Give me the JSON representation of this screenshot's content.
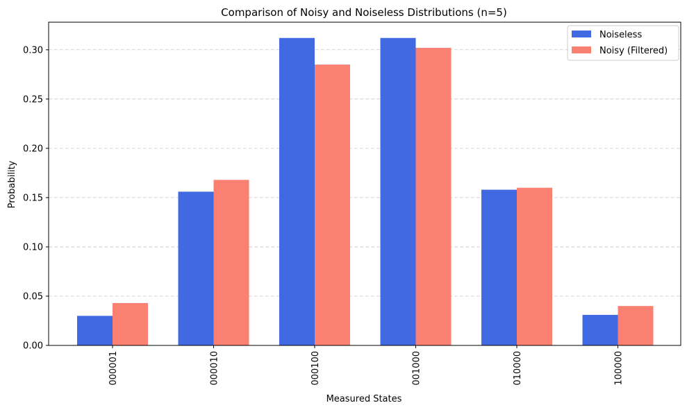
{
  "chart_data": {
    "type": "bar",
    "title": "Comparison of Noisy and Noiseless Distributions (n=5)",
    "xlabel": "Measured States",
    "ylabel": "Probability",
    "categories": [
      "000001",
      "000010",
      "000100",
      "001000",
      "010000",
      "100000"
    ],
    "series": [
      {
        "name": "Noiseless",
        "color": "#4169e1",
        "values": [
          0.03,
          0.156,
          0.312,
          0.312,
          0.158,
          0.031
        ]
      },
      {
        "name": "Noisy (Filtered)",
        "color": "#fa8072",
        "values": [
          0.043,
          0.168,
          0.285,
          0.302,
          0.16,
          0.04
        ]
      }
    ],
    "ylim": [
      0,
      0.328
    ],
    "yticks": [
      "0.00",
      "0.05",
      "0.10",
      "0.15",
      "0.20",
      "0.25",
      "0.30"
    ],
    "grid": "y-dashed",
    "legend_position": "top-right"
  }
}
